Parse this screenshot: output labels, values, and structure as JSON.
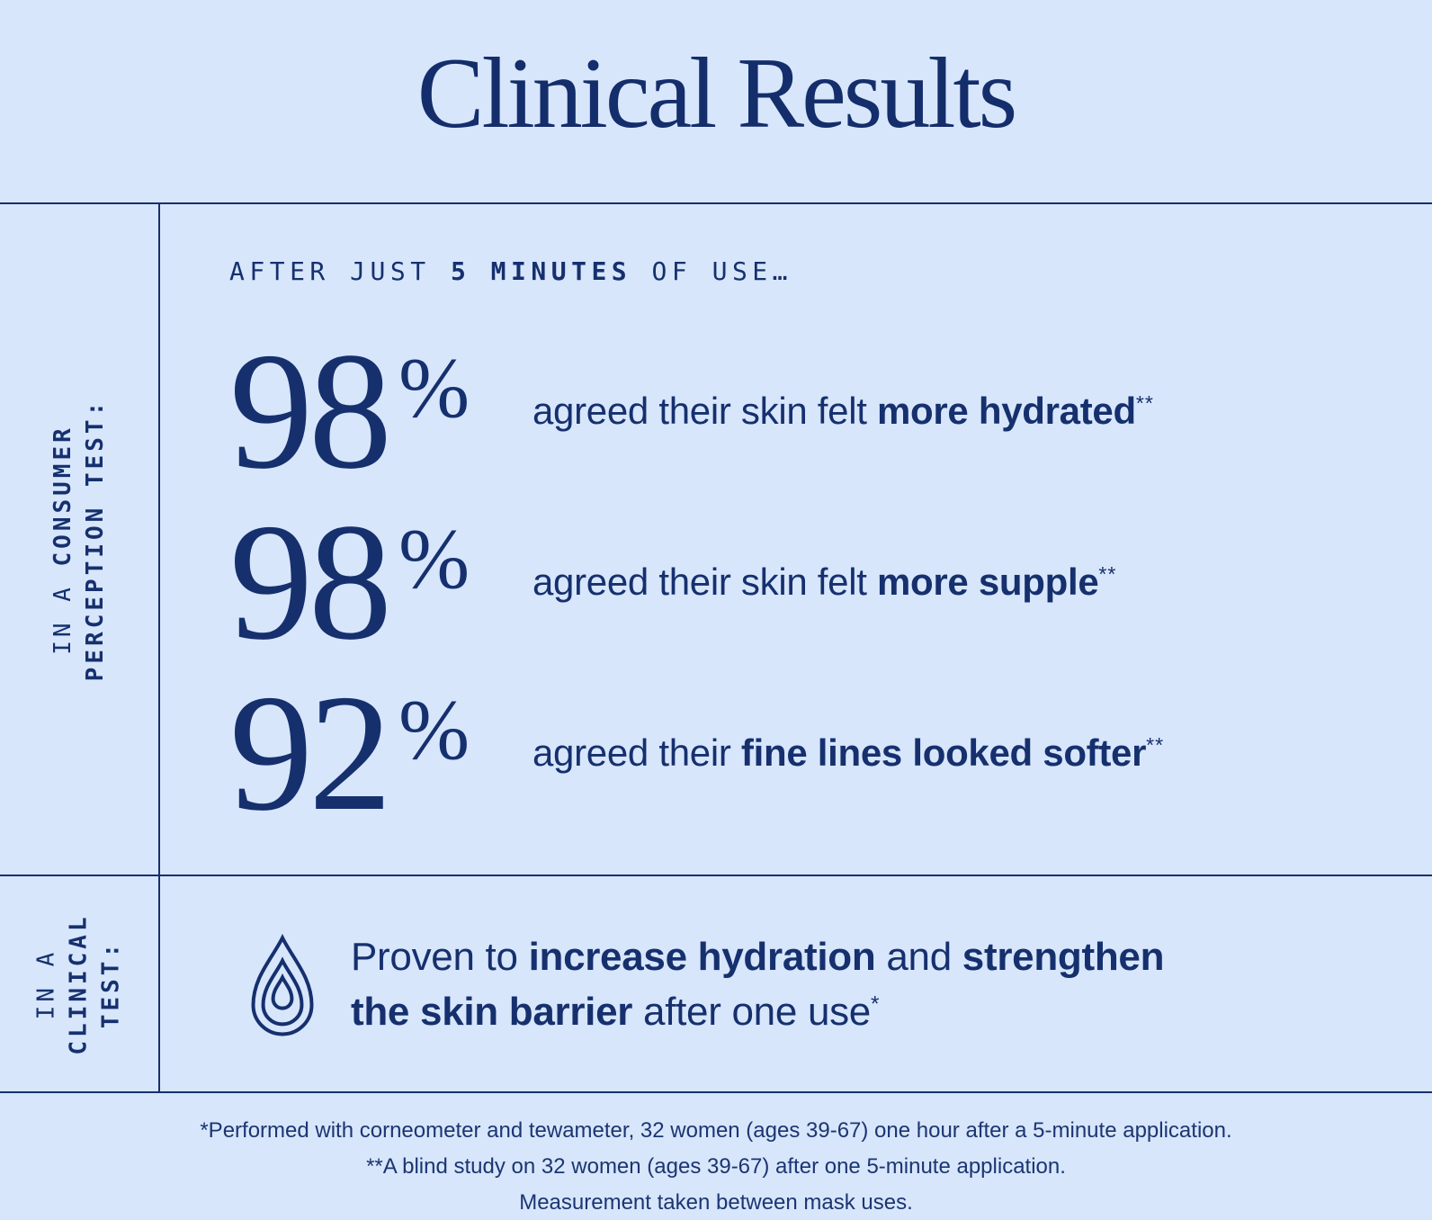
{
  "page": {
    "title": "Clinical Results",
    "colors": {
      "background": "#d7e6fb",
      "navy": "#16306e"
    }
  },
  "consumer_section": {
    "side_label_lines": [
      [
        {
          "text": "IN A ",
          "bold": false
        },
        {
          "text": "CONSUMER",
          "bold": true
        }
      ],
      [
        {
          "text": "PERCEPTION TEST:",
          "bold": true
        }
      ]
    ],
    "kicker": [
      {
        "text": "AFTER JUST ",
        "bold": false
      },
      {
        "text": "5 MINUTES",
        "bold": true
      },
      {
        "text": " OF USE…",
        "bold": false
      }
    ],
    "stats": [
      {
        "value": "98",
        "unit": "%",
        "description": [
          {
            "text": "agreed their skin felt ",
            "bold": false
          },
          {
            "text": "more hydrated",
            "bold": true
          },
          {
            "text": "**",
            "sup": true
          }
        ]
      },
      {
        "value": "98",
        "unit": "%",
        "description": [
          {
            "text": "agreed their skin felt ",
            "bold": false
          },
          {
            "text": "more supple",
            "bold": true
          },
          {
            "text": "**",
            "sup": true
          }
        ]
      },
      {
        "value": "92",
        "unit": "%",
        "description": [
          {
            "text": "agreed their ",
            "bold": false
          },
          {
            "text": "fine lines looked softer",
            "bold": true
          },
          {
            "text": "**",
            "sup": true
          }
        ]
      }
    ]
  },
  "clinical_section": {
    "side_label_lines": [
      [
        {
          "text": "IN A",
          "bold": false
        }
      ],
      [
        {
          "text": "CLINICAL",
          "bold": true
        }
      ],
      [
        {
          "text": "TEST:",
          "bold": true
        }
      ]
    ],
    "icon": "water-drop-icon",
    "statement": [
      {
        "text": "Proven to ",
        "bold": false
      },
      {
        "text": "increase hydration",
        "bold": true
      },
      {
        "text": " and ",
        "bold": false
      },
      {
        "text": "strengthen",
        "bold": true
      },
      {
        "br": true
      },
      {
        "text": "the skin barrier",
        "bold": true
      },
      {
        "text": " after one use",
        "bold": false
      },
      {
        "text": "*",
        "sup": true
      }
    ]
  },
  "footnotes": [
    "*Performed with corneometer and tewameter, 32 women (ages 39-67) one hour after a 5-minute application.",
    "**A blind study on 32 women (ages 39-67) after one 5-minute application.",
    "Measurement taken between mask uses."
  ]
}
